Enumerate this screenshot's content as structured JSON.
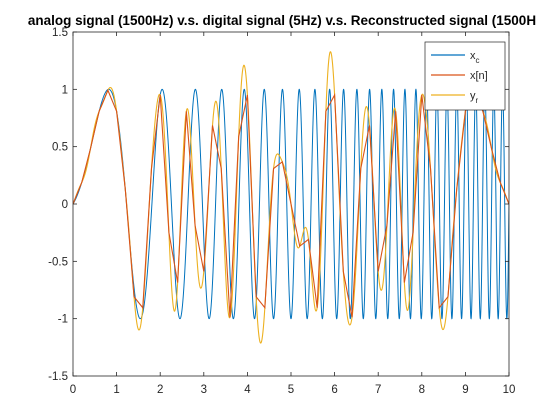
{
  "chart_data": {
    "type": "line",
    "title": "analog signal (1500Hz) v.s. digital signal (5Hz) v.s. Reconstructed signal (1500H",
    "xlim": [
      0,
      10
    ],
    "ylim": [
      -1.5,
      1.5
    ],
    "xticks": [
      0,
      1,
      2,
      3,
      4,
      5,
      6,
      7,
      8,
      9,
      10
    ],
    "yticks": [
      -1.5,
      -1,
      -0.5,
      0,
      0.5,
      1,
      1.5
    ],
    "xtick_labels": [
      "0",
      "1",
      "2",
      "3",
      "4",
      "5",
      "6",
      "7",
      "8",
      "9",
      "10"
    ],
    "ytick_labels": [
      "-1.5",
      "-1",
      "-0.5",
      "0",
      "0.5",
      "1",
      "1.5"
    ],
    "grid": false,
    "legend_position": "top-right",
    "signal_model": "sin(2*pi*(0.1*t + 0.25*t^2))",
    "series": [
      {
        "name": "x_c",
        "label_main": "x",
        "label_sub": "c",
        "color": "#0072BD",
        "kind": "continuous",
        "t_range": [
          0,
          10
        ]
      },
      {
        "name": "x[n]",
        "label_main": "x[n]",
        "label_sub": "",
        "color": "#D95319",
        "kind": "sampled",
        "sample_rate_hz": 5,
        "x": [
          0,
          0.2,
          0.4,
          0.6,
          0.8,
          1.0,
          1.2,
          1.4,
          1.6,
          1.8,
          2.0,
          2.2,
          2.4,
          2.6,
          2.8,
          3.0,
          3.2,
          3.4,
          3.6,
          3.8,
          4.0,
          4.2,
          4.4,
          4.6,
          4.8,
          5.0,
          5.2,
          5.4,
          5.6,
          5.8,
          6.0,
          6.2,
          6.4,
          6.6,
          6.8,
          7.0,
          7.2,
          7.4,
          7.6,
          7.8,
          8.0,
          8.2,
          8.4,
          8.6,
          8.8,
          9.0,
          9.2,
          9.4,
          9.6,
          9.8,
          10.0
        ],
        "y": [
          0,
          0.187,
          0.482,
          0.809,
          0.992,
          0.809,
          0.125,
          -0.809,
          -0.905,
          0.309,
          0.951,
          -0.249,
          -0.685,
          0.809,
          -0.187,
          -0.588,
          0.685,
          0.309,
          -0.988,
          0.588,
          0.951,
          -0.809,
          -0.904,
          0.309,
          0.368,
          0.0,
          -0.368,
          -0.309,
          -0.905,
          0.809,
          0.951,
          -0.588,
          -0.988,
          0.309,
          0.685,
          -0.588,
          -0.187,
          0.809,
          -0.685,
          -0.249,
          0.951,
          0.309,
          -0.905,
          -0.809,
          0.125,
          0.809,
          0.992,
          0.809,
          0.482,
          0.187,
          0.0
        ]
      },
      {
        "name": "y_r",
        "label_main": "y",
        "label_sub": "r",
        "color": "#EDB120",
        "kind": "sinc-reconstruction",
        "t_range": [
          0,
          10
        ]
      }
    ]
  }
}
